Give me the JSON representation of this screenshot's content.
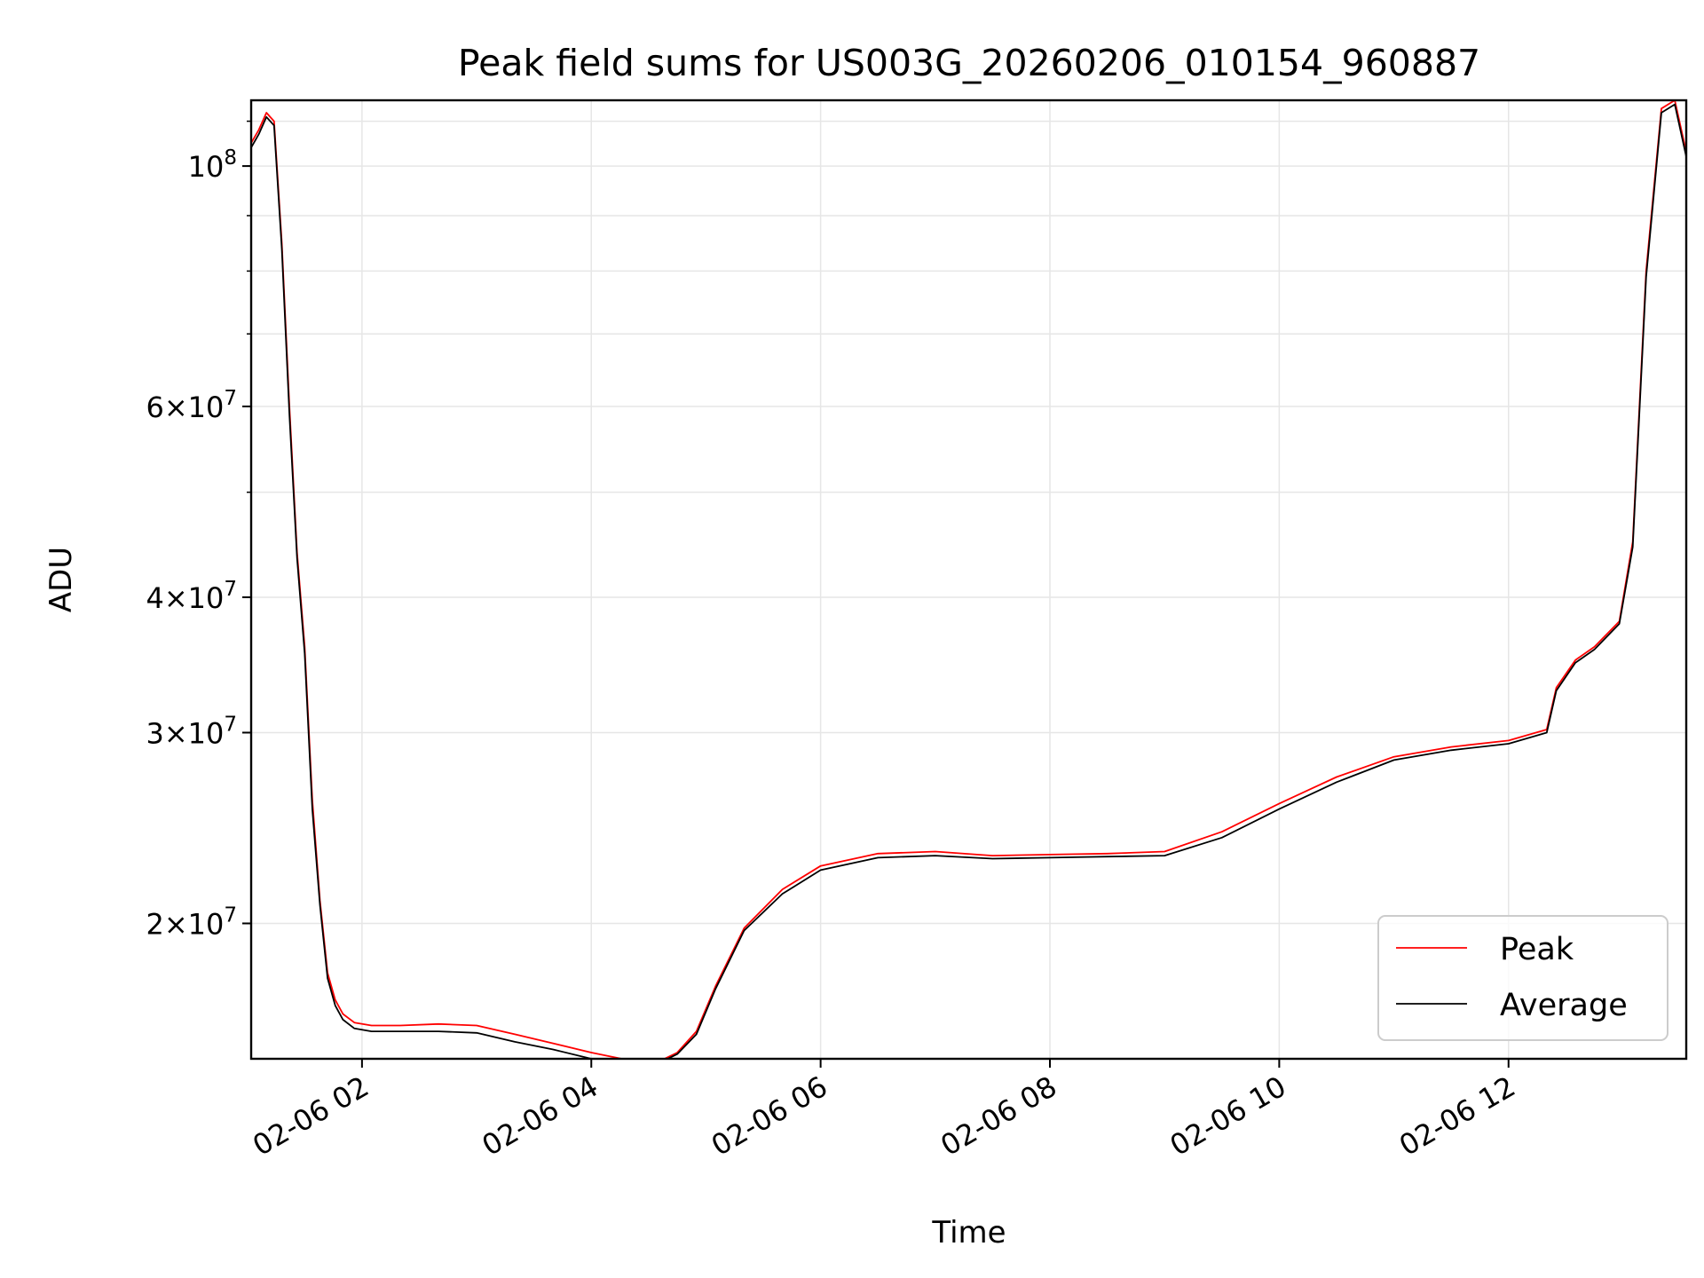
{
  "chart_data": {
    "type": "line",
    "title": "Peak field sums for US003G_20260206_010154_960887",
    "xlabel": "Time",
    "ylabel": "ADU",
    "y_scale": "log",
    "x_range": [
      "2026-02-06T01:02",
      "2026-02-06T13:33"
    ],
    "ylim": [
      15000000,
      115000000
    ],
    "grid": true,
    "legend_position": "lower right",
    "x_ticks": [
      {
        "label": "02-06 02",
        "value": "2026-02-06T02:00"
      },
      {
        "label": "02-06 04",
        "value": "2026-02-06T04:00"
      },
      {
        "label": "02-06 06",
        "value": "2026-02-06T06:00"
      },
      {
        "label": "02-06 08",
        "value": "2026-02-06T08:00"
      },
      {
        "label": "02-06 10",
        "value": "2026-02-06T10:00"
      },
      {
        "label": "02-06 12",
        "value": "2026-02-06T12:00"
      }
    ],
    "y_ticks": [
      {
        "label": "10^8",
        "value": 100000000
      },
      {
        "label": "6×10^7",
        "value": 60000000
      },
      {
        "label": "4×10^7",
        "value": 40000000
      },
      {
        "label": "3×10^7",
        "value": 30000000
      },
      {
        "label": "2×10^7",
        "value": 20000000
      }
    ],
    "series": [
      {
        "name": "Peak",
        "color": "#ff0000",
        "x": [
          "2026-02-06T01:02",
          "2026-02-06T01:06",
          "2026-02-06T01:10",
          "2026-02-06T01:14",
          "2026-02-06T01:18",
          "2026-02-06T01:22",
          "2026-02-06T01:26",
          "2026-02-06T01:30",
          "2026-02-06T01:34",
          "2026-02-06T01:38",
          "2026-02-06T01:42",
          "2026-02-06T01:46",
          "2026-02-06T01:50",
          "2026-02-06T01:56",
          "2026-02-06T02:05",
          "2026-02-06T02:20",
          "2026-02-06T02:40",
          "2026-02-06T03:00",
          "2026-02-06T03:20",
          "2026-02-06T03:40",
          "2026-02-06T04:00",
          "2026-02-06T04:20",
          "2026-02-06T04:35",
          "2026-02-06T04:45",
          "2026-02-06T04:55",
          "2026-02-06T05:05",
          "2026-02-06T05:20",
          "2026-02-06T05:40",
          "2026-02-06T06:00",
          "2026-02-06T06:30",
          "2026-02-06T07:00",
          "2026-02-06T07:30",
          "2026-02-06T08:00",
          "2026-02-06T08:30",
          "2026-02-06T09:00",
          "2026-02-06T09:30",
          "2026-02-06T10:00",
          "2026-02-06T10:30",
          "2026-02-06T11:00",
          "2026-02-06T11:30",
          "2026-02-06T12:00",
          "2026-02-06T12:20",
          "2026-02-06T12:25",
          "2026-02-06T12:35",
          "2026-02-06T12:45",
          "2026-02-06T12:58",
          "2026-02-06T13:05",
          "2026-02-06T13:12",
          "2026-02-06T13:20",
          "2026-02-06T13:27",
          "2026-02-06T13:33"
        ],
        "y": [
          105000000,
          108000000,
          112000000,
          110000000,
          85000000,
          60000000,
          44000000,
          36000000,
          26000000,
          21000000,
          18000000,
          17000000,
          16500000,
          16200000,
          16100000,
          16100000,
          16150000,
          16100000,
          15800000,
          15500000,
          15200000,
          14950000,
          14900000,
          15200000,
          15900000,
          17500000,
          19800000,
          21500000,
          22600000,
          23200000,
          23300000,
          23100000,
          23150000,
          23200000,
          23300000,
          24300000,
          25800000,
          27300000,
          28500000,
          29100000,
          29500000,
          30200000,
          33000000,
          35000000,
          36000000,
          38000000,
          45000000,
          80000000,
          113000000,
          115000000,
          103000000
        ]
      },
      {
        "name": "Average",
        "color": "#000000",
        "x": [
          "2026-02-06T01:02",
          "2026-02-06T01:06",
          "2026-02-06T01:10",
          "2026-02-06T01:14",
          "2026-02-06T01:18",
          "2026-02-06T01:22",
          "2026-02-06T01:26",
          "2026-02-06T01:30",
          "2026-02-06T01:34",
          "2026-02-06T01:38",
          "2026-02-06T01:42",
          "2026-02-06T01:46",
          "2026-02-06T01:50",
          "2026-02-06T01:56",
          "2026-02-06T02:05",
          "2026-02-06T02:20",
          "2026-02-06T02:40",
          "2026-02-06T03:00",
          "2026-02-06T03:20",
          "2026-02-06T03:40",
          "2026-02-06T04:00",
          "2026-02-06T04:20",
          "2026-02-06T04:35",
          "2026-02-06T04:45",
          "2026-02-06T04:55",
          "2026-02-06T05:05",
          "2026-02-06T05:20",
          "2026-02-06T05:40",
          "2026-02-06T06:00",
          "2026-02-06T06:30",
          "2026-02-06T07:00",
          "2026-02-06T07:30",
          "2026-02-06T08:00",
          "2026-02-06T08:30",
          "2026-02-06T09:00",
          "2026-02-06T09:30",
          "2026-02-06T10:00",
          "2026-02-06T10:30",
          "2026-02-06T11:00",
          "2026-02-06T11:30",
          "2026-02-06T12:00",
          "2026-02-06T12:20",
          "2026-02-06T12:25",
          "2026-02-06T12:35",
          "2026-02-06T12:45",
          "2026-02-06T12:58",
          "2026-02-06T13:05",
          "2026-02-06T13:12",
          "2026-02-06T13:20",
          "2026-02-06T13:27",
          "2026-02-06T13:33"
        ],
        "y": [
          104000000,
          107000000,
          111000000,
          109000000,
          84000000,
          59000000,
          43500000,
          35500000,
          25500000,
          20800000,
          17800000,
          16800000,
          16300000,
          16000000,
          15900000,
          15900000,
          15900000,
          15850000,
          15550000,
          15300000,
          15000000,
          14800000,
          14850000,
          15150000,
          15800000,
          17400000,
          19700000,
          21300000,
          22400000,
          23000000,
          23100000,
          22950000,
          23000000,
          23050000,
          23100000,
          24000000,
          25500000,
          27000000,
          28300000,
          28900000,
          29300000,
          30000000,
          32800000,
          34800000,
          35800000,
          37800000,
          44500000,
          79000000,
          112000000,
          114000000,
          102000000
        ]
      }
    ]
  }
}
